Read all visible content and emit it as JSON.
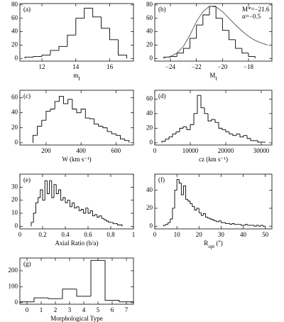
{
  "chart_data": [
    {
      "type": "histogram",
      "panel": "(a)",
      "xlabel": [
        {
          "text": "m"
        },
        {
          "text": "I",
          "sub": true
        }
      ],
      "bins": [
        11,
        11.5,
        12,
        12.5,
        13,
        13.5,
        14,
        14.5,
        15,
        15.5,
        16,
        16.5,
        17
      ],
      "counts": [
        2,
        3,
        5,
        12,
        18,
        35,
        60,
        75,
        62,
        45,
        28,
        5
      ],
      "xlim": [
        10.7,
        17.4
      ],
      "xticks": [
        12,
        14,
        16
      ],
      "ylim": [
        -4,
        82
      ],
      "yticks": [
        0,
        20,
        40,
        60,
        80
      ],
      "color": "#000000"
    },
    {
      "type": "histogram",
      "panel": "(b)",
      "xlabel": [
        {
          "text": "M"
        },
        {
          "text": "I",
          "sub": true
        }
      ],
      "bins": [
        -24.5,
        -24,
        -23.5,
        -23,
        -22.5,
        -22,
        -21.5,
        -21,
        -20.5,
        -20,
        -19.5,
        -19,
        -18.5,
        -18,
        -17.5
      ],
      "counts": [
        2,
        3,
        8,
        15,
        30,
        50,
        65,
        78,
        60,
        42,
        28,
        15,
        8,
        3
      ],
      "curve": {
        "x": [
          -24.5,
          -24,
          -23.5,
          -23,
          -22.5,
          -22,
          -21.5,
          -21,
          -20.5,
          -20,
          -19.5,
          -19,
          -18.5,
          -18,
          -17.5,
          -17,
          -16.5
        ],
        "y": [
          1,
          3,
          8,
          18,
          35,
          55,
          70,
          78,
          77,
          70,
          60,
          50,
          41,
          33,
          27,
          23,
          20
        ]
      },
      "annotations": [
        "M*=−21.6",
        "α=−0.5"
      ],
      "xlim": [
        -25.2,
        -16.2
      ],
      "xticks": [
        {
          "value": -24,
          "label": "−24"
        },
        {
          "value": -22,
          "label": "−22"
        },
        {
          "value": -20,
          "label": "−20"
        },
        {
          "value": -18,
          "label": "−18"
        }
      ],
      "ylim": [
        -4,
        82
      ],
      "yticks": [
        0,
        20,
        40,
        60,
        80
      ],
      "color": "#000000"
    },
    {
      "type": "histogram",
      "panel": "(c)",
      "xlabel": [
        {
          "text": "W (km s⁻¹)"
        }
      ],
      "bins": [
        125,
        150,
        175,
        200,
        225,
        250,
        275,
        300,
        325,
        350,
        375,
        400,
        425,
        450,
        475,
        500,
        525,
        550,
        575,
        600,
        625,
        650,
        675
      ],
      "counts": [
        10,
        22,
        30,
        42,
        45,
        55,
        62,
        52,
        58,
        45,
        40,
        45,
        33,
        32,
        25,
        22,
        20,
        15,
        12,
        10,
        5,
        3
      ],
      "xlim": [
        50,
        700
      ],
      "xticks": [
        200,
        400,
        600
      ],
      "ylim": [
        -3,
        70
      ],
      "yticks": [
        0,
        20,
        40,
        60
      ],
      "color": "#000000"
    },
    {
      "type": "histogram",
      "panel": "(d)",
      "xlabel": [
        {
          "text": "cz (km s⁻¹)"
        }
      ],
      "bins": [
        2000,
        3000,
        4000,
        5000,
        6000,
        7000,
        8000,
        9000,
        10000,
        11000,
        12000,
        13000,
        14000,
        15000,
        16000,
        17000,
        18000,
        19000,
        20000,
        21000,
        22000,
        23000,
        24000,
        25000,
        26000,
        27000,
        28000,
        29000,
        30000,
        31000
      ],
      "counts": [
        2,
        5,
        8,
        12,
        15,
        20,
        22,
        18,
        25,
        40,
        65,
        48,
        40,
        30,
        32,
        28,
        20,
        18,
        15,
        12,
        10,
        12,
        8,
        10,
        6,
        3,
        3,
        1,
        1
      ],
      "xlim": [
        0,
        33000
      ],
      "xticks": [
        0,
        10000,
        20000,
        30000
      ],
      "ylim": [
        -3,
        72
      ],
      "yticks": [
        0,
        20,
        40,
        60
      ],
      "color": "#000000"
    },
    {
      "type": "histogram",
      "panel": "(e)",
      "xlabel": [
        {
          "text": "Axial Ratio (b/a)"
        }
      ],
      "bins": [
        0.1,
        0.12,
        0.14,
        0.16,
        0.18,
        0.2,
        0.22,
        0.24,
        0.26,
        0.28,
        0.3,
        0.32,
        0.34,
        0.36,
        0.38,
        0.4,
        0.42,
        0.44,
        0.46,
        0.48,
        0.5,
        0.52,
        0.54,
        0.56,
        0.58,
        0.6,
        0.62,
        0.64,
        0.66,
        0.68,
        0.7,
        0.72,
        0.74,
        0.76,
        0.78,
        0.8,
        0.82,
        0.84,
        0.86,
        0.88,
        0.9
      ],
      "counts": [
        3,
        10,
        18,
        22,
        28,
        20,
        35,
        25,
        35,
        22,
        32,
        25,
        28,
        20,
        22,
        18,
        20,
        15,
        18,
        14,
        15,
        12,
        13,
        10,
        14,
        10,
        12,
        8,
        9,
        7,
        8,
        6,
        5,
        4,
        3,
        3,
        2,
        2,
        1,
        1
      ],
      "xlim": [
        0,
        1
      ],
      "xticks": [
        0,
        0.2,
        0.4,
        0.6,
        0.8,
        1
      ],
      "ylim": [
        -2,
        40
      ],
      "yticks": [
        0,
        10,
        20,
        30
      ],
      "color": "#000000"
    },
    {
      "type": "histogram",
      "panel": "(f)",
      "xlabel": [
        {
          "text": "R"
        },
        {
          "text": "opt",
          "sub": true
        },
        {
          "text": " ('')"
        }
      ],
      "bins": [
        4,
        5,
        6,
        7,
        8,
        9,
        10,
        11,
        12,
        13,
        14,
        15,
        16,
        17,
        18,
        19,
        20,
        21,
        22,
        23,
        24,
        25,
        26,
        27,
        28,
        29,
        30,
        31,
        32,
        33,
        34,
        35,
        36,
        37,
        38,
        39,
        40,
        41,
        42,
        43,
        44,
        45,
        46,
        47,
        48,
        49,
        50
      ],
      "counts": [
        1,
        2,
        4,
        8,
        20,
        40,
        52,
        48,
        35,
        45,
        30,
        28,
        25,
        22,
        18,
        20,
        15,
        12,
        14,
        10,
        9,
        8,
        7,
        6,
        5,
        6,
        4,
        4,
        3,
        3,
        2,
        3,
        2,
        2,
        2,
        1,
        1,
        2,
        1,
        1,
        1,
        0,
        1,
        0,
        1,
        0
      ],
      "xlim": [
        0,
        53
      ],
      "xticks": [
        0,
        10,
        20,
        30,
        40,
        50
      ],
      "ylim": [
        -3,
        58
      ],
      "yticks": [
        0,
        20,
        40
      ],
      "color": "#000000"
    },
    {
      "type": "histogram",
      "panel": "(g)",
      "xlabel": [
        {
          "text": "Morphological Type"
        }
      ],
      "bins": [
        -0.5,
        0.5,
        1.5,
        2.5,
        3.5,
        4.5,
        5.5,
        6.5,
        7.5
      ],
      "counts": [
        5,
        30,
        25,
        85,
        40,
        265,
        15,
        5
      ],
      "xlim": [
        -0.5,
        7.5
      ],
      "xticks": [
        0,
        1,
        2,
        3,
        4,
        5,
        6,
        7
      ],
      "ylim": [
        -10,
        280
      ],
      "yticks": [
        0,
        100,
        200
      ],
      "color": "#000000"
    }
  ]
}
